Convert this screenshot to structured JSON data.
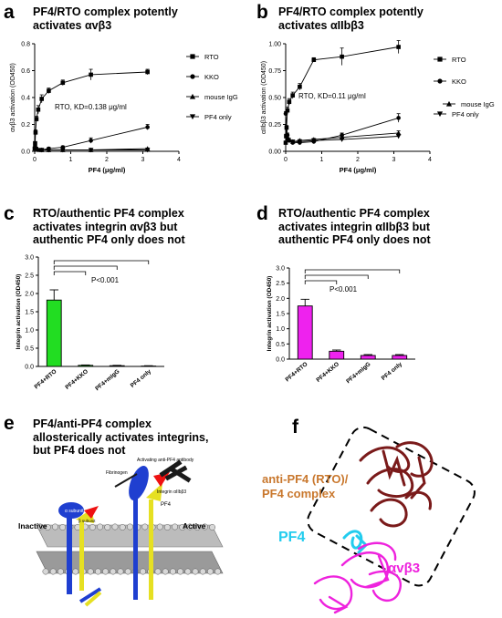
{
  "panels": {
    "a": {
      "letter": "a",
      "title_line1": "PF4/RTO complex potently",
      "title_line2": "activates αvβ3",
      "annotation": "RTO, KD=0.138 μg/ml"
    },
    "b": {
      "letter": "b",
      "title_line1": "PF4/RTO complex potently",
      "title_line2": "activates αIIbβ3",
      "annotation": "RTO, KD=0.11 μg/ml"
    },
    "c": {
      "letter": "c",
      "title_line1": "RTO/authentic PF4 complex",
      "title_line2": "activates integrin αvβ3 but",
      "title_line3": "authentic PF4 only does not",
      "pvalue": "P<0.001"
    },
    "d": {
      "letter": "d",
      "title_line1": "RTO/authentic PF4 complex",
      "title_line2": "activates integrin αIIbβ3 but",
      "title_line3": "authentic PF4 only does not",
      "pvalue": "P<0.001"
    },
    "e": {
      "letter": "e",
      "title_line1": "PF4/anti-PF4 complex",
      "title_line2": "allosterically activates integrins,",
      "title_line3": "but PF4 does not",
      "label_fibrinogen": "Fibrinogen",
      "label_antibody": "Activating anti-PF4 antibody",
      "label_integrin": "Integrin αIIbβ3",
      "label_inactive": "Inactive",
      "label_active": "Active",
      "label_alpha": "α subunit",
      "label_beta": "β subunit",
      "label_pf4": "PF4"
    },
    "f": {
      "letter": "f",
      "label_complex_line1": "anti-PF4 (RTO)/",
      "label_complex_line2": "PF4 complex",
      "label_pf4": "PF4",
      "label_integrin": "αvβ3"
    }
  },
  "colors": {
    "bar_green": "#22dd22",
    "bar_magenta": "#ee22ee",
    "complex_label": "#c9782e",
    "pf4_cyan": "#22ccee",
    "integrin_magenta": "#ee22dd",
    "antibody_maroon": "#7a1a1a"
  },
  "chart_data": [
    {
      "id": "a",
      "type": "line",
      "xlabel": "PF4 (μg/ml)",
      "ylabel": "αvβ3 activation (OD450)",
      "xlim": [
        0,
        4
      ],
      "ylim": [
        0,
        0.8
      ],
      "xticks": [
        0,
        1,
        2,
        3,
        4
      ],
      "yticks": [
        0.0,
        0.2,
        0.4,
        0.6,
        0.8
      ],
      "legend": "right",
      "series": [
        {
          "name": "RTO",
          "marker": "square",
          "x": [
            0,
            0.012,
            0.024,
            0.049,
            0.098,
            0.195,
            0.39,
            0.78,
            1.56,
            3.13
          ],
          "y": [
            0.02,
            0.06,
            0.14,
            0.24,
            0.31,
            0.39,
            0.45,
            0.51,
            0.57,
            0.59
          ],
          "err": [
            0.01,
            0.01,
            0.02,
            0.02,
            0.03,
            0.03,
            0.02,
            0.02,
            0.04,
            0.02
          ]
        },
        {
          "name": "KKO",
          "marker": "circle",
          "x": [
            0.012,
            0.049,
            0.098,
            0.195,
            0.39,
            0.78,
            1.56,
            3.13
          ],
          "y": [
            0.04,
            0.02,
            0.01,
            0.01,
            0.02,
            0.03,
            0.08,
            0.18
          ],
          "err": [
            0.01,
            0.01,
            0.01,
            0.01,
            0.01,
            0.01,
            0.02,
            0.02
          ]
        },
        {
          "name": "mouse IgG",
          "marker": "triangle",
          "x": [
            0.195,
            0.39,
            0.78,
            1.56,
            3.13
          ],
          "y": [
            0.01,
            0.01,
            0.01,
            0.01,
            0.02
          ],
          "err": [
            0.005,
            0.005,
            0.005,
            0.005,
            0.005
          ]
        },
        {
          "name": "PF4 only",
          "marker": "triangle-down",
          "x": [
            0.195,
            0.39,
            0.78,
            1.56,
            3.13
          ],
          "y": [
            0.01,
            0.01,
            0.01,
            0.01,
            0.01
          ],
          "err": [
            0.005,
            0.005,
            0.005,
            0.005,
            0.005
          ]
        }
      ]
    },
    {
      "id": "b",
      "type": "line",
      "xlabel": "PF4 (μg/ml)",
      "ylabel": "αIIbβ3 activation (OD450)",
      "xlim": [
        0,
        4
      ],
      "ylim": [
        0,
        1.0
      ],
      "xticks": [
        0,
        1,
        2,
        3,
        4
      ],
      "yticks": [
        0.0,
        0.25,
        0.5,
        0.75,
        1.0
      ],
      "legend": "right",
      "series": [
        {
          "name": "RTO",
          "marker": "square",
          "x": [
            0,
            0.012,
            0.024,
            0.049,
            0.098,
            0.195,
            0.39,
            0.78,
            1.56,
            3.13
          ],
          "y": [
            0.08,
            0.14,
            0.22,
            0.38,
            0.46,
            0.52,
            0.6,
            0.85,
            0.88,
            0.97
          ],
          "err": [
            0.01,
            0.02,
            0.02,
            0.03,
            0.03,
            0.03,
            0.03,
            0.02,
            0.08,
            0.06
          ]
        },
        {
          "name": "KKO",
          "marker": "circle",
          "x": [
            0,
            0.049,
            0.098,
            0.195,
            0.39,
            0.78,
            1.56,
            3.13
          ],
          "y": [
            0.35,
            0.15,
            0.1,
            0.08,
            0.08,
            0.09,
            0.15,
            0.31
          ],
          "err": [
            0.02,
            0.02,
            0.02,
            0.01,
            0.01,
            0.02,
            0.02,
            0.04
          ]
        },
        {
          "name": "mouse IgG",
          "marker": "triangle",
          "x": [
            0.049,
            0.195,
            0.39,
            0.78,
            1.56,
            3.13
          ],
          "y": [
            0.12,
            0.09,
            0.1,
            0.11,
            0.13,
            0.17
          ],
          "err": [
            0.01,
            0.01,
            0.01,
            0.01,
            0.01,
            0.02
          ]
        },
        {
          "name": "PF4 only",
          "marker": "triangle-down",
          "x": [
            0.049,
            0.195,
            0.39,
            0.78,
            1.56,
            3.13
          ],
          "y": [
            0.11,
            0.09,
            0.09,
            0.1,
            0.11,
            0.14
          ],
          "err": [
            0.01,
            0.01,
            0.01,
            0.01,
            0.01,
            0.02
          ]
        }
      ]
    },
    {
      "id": "c",
      "type": "bar",
      "categories": [
        "PF4+RTO",
        "PF4+KKO",
        "PF4+mIgG",
        "PF4 only"
      ],
      "values": [
        1.82,
        0.03,
        0.02,
        0.01
      ],
      "err": [
        0.28,
        0.01,
        0.01,
        0.01
      ],
      "ylabel": "Integrin activation (OD450)",
      "ylim": [
        0,
        3
      ],
      "yticks": [
        0.0,
        0.5,
        1.0,
        1.5,
        2.0,
        2.5,
        3.0
      ],
      "color": "#22dd22"
    },
    {
      "id": "d",
      "type": "bar",
      "categories": [
        "PF4+RTO",
        "PF4+KKO",
        "PF4+mIgG",
        "PF4 only"
      ],
      "values": [
        1.75,
        0.26,
        0.12,
        0.12
      ],
      "err": [
        0.22,
        0.04,
        0.03,
        0.03
      ],
      "ylabel": "Integrin activation (OD450)",
      "ylim": [
        0,
        3
      ],
      "yticks": [
        0.0,
        0.5,
        1.0,
        1.5,
        2.0,
        2.5,
        3.0
      ],
      "color": "#ee22ee"
    }
  ]
}
